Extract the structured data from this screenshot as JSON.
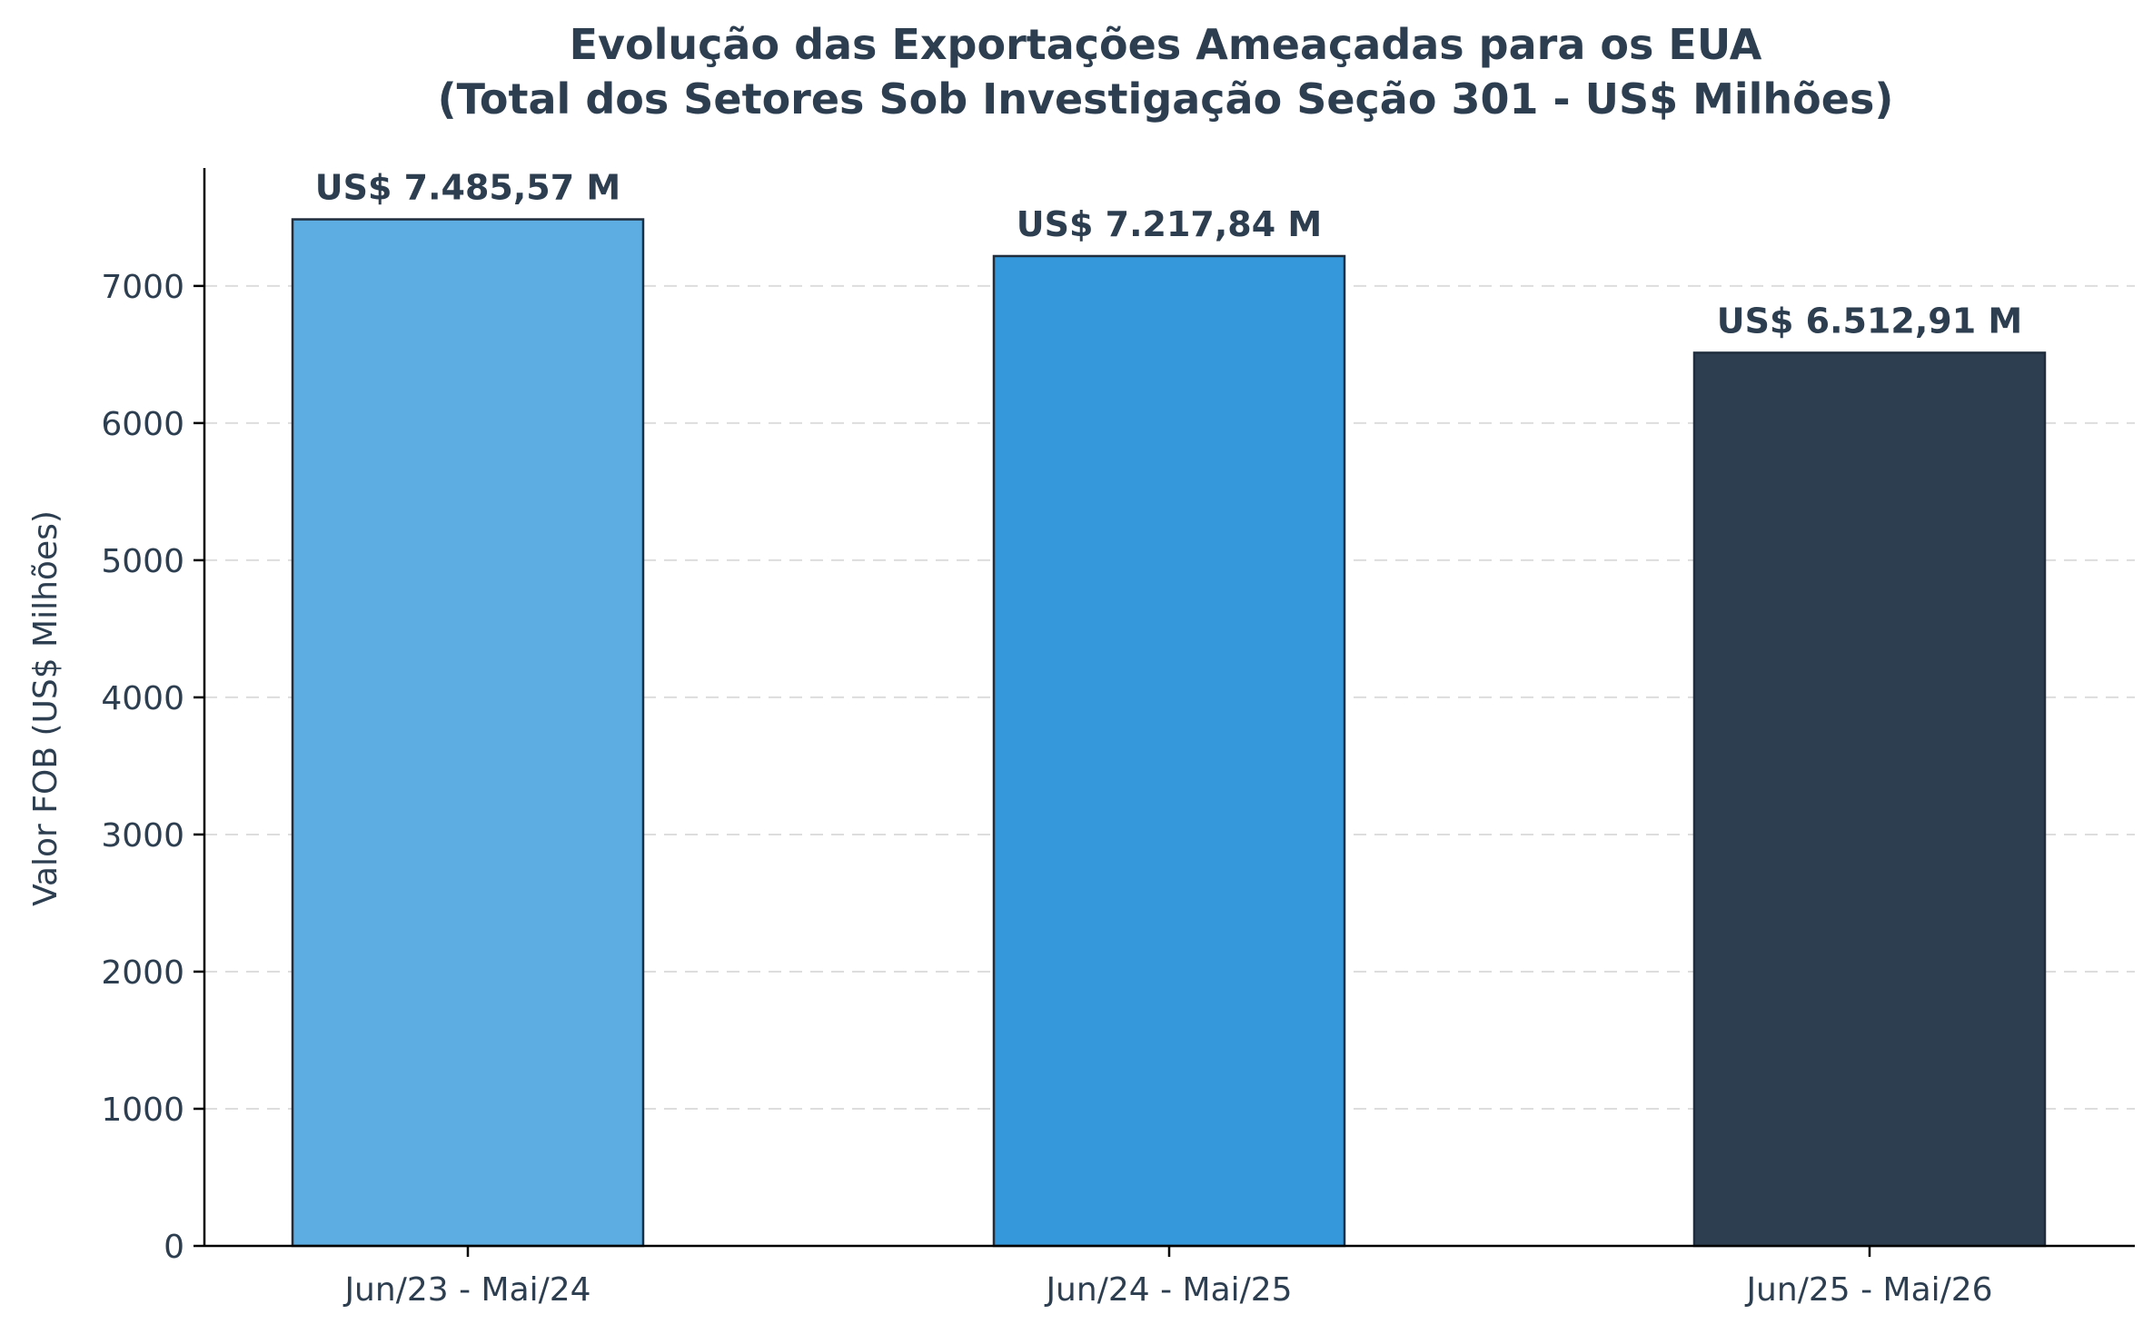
{
  "chart_data": {
    "type": "bar",
    "title": "Evolução das Exportações Ameaçadas para os EUA",
    "subtitle": "(Total dos Setores Sob Investigação Seção 301 - US$ Milhões)",
    "xlabel": "",
    "ylabel": "Valor FOB (US$ Milhões)",
    "categories": [
      "Jun/23 - Mai/24",
      "Jun/24 - Mai/25",
      "Jun/25 - Mai/26"
    ],
    "values": [
      7485.57,
      7217.84,
      6512.91
    ],
    "data_labels": [
      "US$ 7.485,57 M",
      "US$ 7.217,84 M",
      "US$ 6.512,91 M"
    ],
    "bar_colors": [
      "#5dade2",
      "#3498db",
      "#2c3e50"
    ],
    "ylim": [
      0,
      7860
    ],
    "yticks": [
      0,
      1000,
      2000,
      3000,
      4000,
      5000,
      6000,
      7000
    ],
    "grid": "y, dashed",
    "legend": "none"
  }
}
